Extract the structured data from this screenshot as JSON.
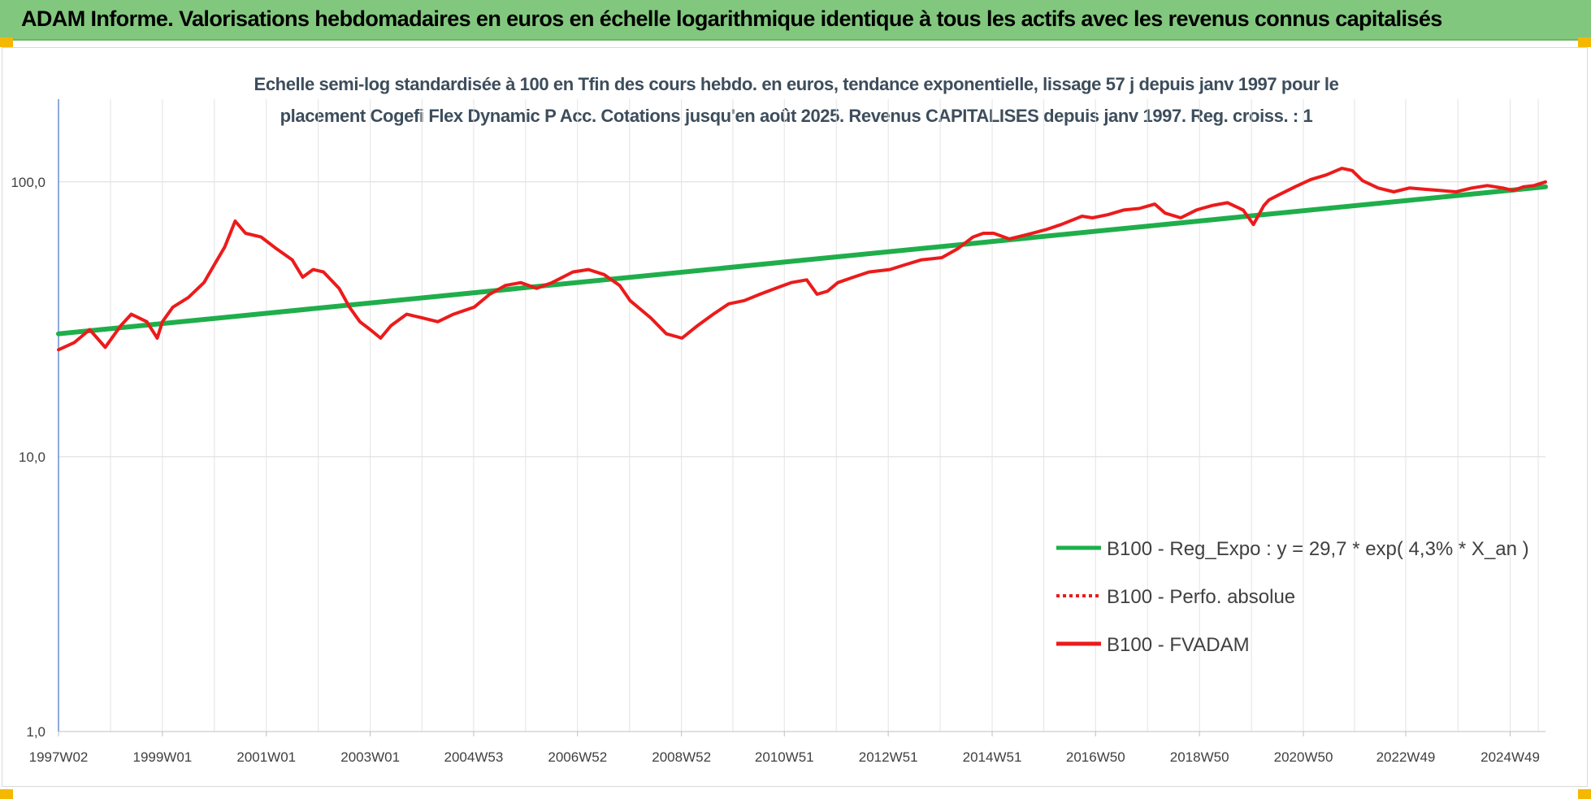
{
  "header": {
    "title": "ADAM Informe. Valorisations hebdomadaires en euros en échelle logarithmique identique à tous les actifs avec les revenus connus capitalisés"
  },
  "colors": {
    "header_bg": "#82c77e",
    "corner_accent": "#f5b800",
    "reg_line": "#1fae4b",
    "fvadam_line": "#ec1b1b"
  },
  "chart_data": {
    "type": "line",
    "title_lines": [
      "Echelle semi-log standardisée à 100 en Tfin des cours hebdo. en euros, tendance exponentielle, lissage 57 j depuis janv 1997 pour le",
      "placement Cogefi Flex Dynamic P Acc. Cotations jusqu'en août 2025. Revenus CAPITALISES depuis janv 1997. Reg. croiss. : 1"
    ],
    "y_scale": "log",
    "ylim": [
      1,
      200
    ],
    "y_ticks": [
      1,
      10,
      100
    ],
    "y_tick_labels": [
      "1,0",
      "10,0",
      "100,0"
    ],
    "xlim": [
      1997.0,
      2025.62
    ],
    "x_ticks": [
      1997.0,
      1999.0,
      2001.0,
      2003.0,
      2004.99,
      2006.99,
      2008.99,
      2010.97,
      2012.97,
      2014.97,
      2016.96,
      2018.96,
      2020.96,
      2022.93,
      2024.94
    ],
    "x_tick_labels": [
      "1997W02",
      "1999W01",
      "2001W01",
      "2003W01",
      "2004W53",
      "2006W52",
      "2008W52",
      "2010W51",
      "2012W51",
      "2014W51",
      "2016W50",
      "2018W50",
      "2020W50",
      "2022W49",
      "2024W49"
    ],
    "grid": "vertical-and-horizontal",
    "legend_position": "right",
    "series": [
      {
        "name": "B100 - Reg_Expo : y = 29,7 * exp( 4,3% *  X_an )",
        "style": "solid",
        "color": "#1fae4b",
        "x": [
          1997.0,
          2025.62
        ],
        "y": [
          28.0,
          96.0
        ]
      },
      {
        "name": "B100 - Perfo. absolue",
        "style": "dotted",
        "color": "#ec1b1b",
        "x": [],
        "y": []
      },
      {
        "name": "B100 - FVADAM",
        "style": "solid",
        "color": "#ec1b1b",
        "x": [
          1997.0,
          1997.3,
          1997.6,
          1997.9,
          1998.2,
          1998.4,
          1998.7,
          1998.9,
          1999.0,
          1999.2,
          1999.5,
          1999.8,
          2000.0,
          2000.2,
          2000.4,
          2000.6,
          2000.9,
          2001.2,
          2001.5,
          2001.7,
          2001.9,
          2002.1,
          2002.4,
          2002.6,
          2002.8,
          2003.0,
          2003.2,
          2003.4,
          2003.7,
          2004.0,
          2004.3,
          2004.6,
          2005.0,
          2005.3,
          2005.6,
          2005.9,
          2006.2,
          2006.5,
          2006.9,
          2007.2,
          2007.5,
          2007.8,
          2008.0,
          2008.4,
          2008.7,
          2009.0,
          2009.3,
          2009.6,
          2009.9,
          2010.2,
          2010.5,
          2010.8,
          2011.1,
          2011.4,
          2011.6,
          2011.8,
          2012.0,
          2012.3,
          2012.6,
          2013.0,
          2013.3,
          2013.6,
          2014.0,
          2014.3,
          2014.6,
          2014.8,
          2015.0,
          2015.3,
          2015.6,
          2016.0,
          2016.3,
          2016.7,
          2016.9,
          2017.2,
          2017.5,
          2017.8,
          2018.1,
          2018.3,
          2018.6,
          2018.9,
          2019.0,
          2019.2,
          2019.5,
          2019.8,
          2020.0,
          2020.2,
          2020.3,
          2020.5,
          2020.8,
          2021.1,
          2021.4,
          2021.7,
          2021.9,
          2022.1,
          2022.4,
          2022.7,
          2023.0,
          2023.3,
          2023.6,
          2023.9,
          2024.2,
          2024.5,
          2024.8,
          2025.0,
          2025.2,
          2025.4,
          2025.62
        ],
        "y": [
          24.5,
          26,
          29,
          25,
          30,
          33,
          31,
          27,
          31,
          35,
          38,
          43,
          50,
          58,
          72,
          65,
          63,
          57,
          52,
          45,
          48,
          47,
          41,
          35,
          31,
          29,
          27,
          30,
          33,
          32,
          31,
          33,
          35,
          39,
          42,
          43,
          41,
          43,
          47,
          48,
          46,
          42,
          37,
          32,
          28,
          27,
          30,
          33,
          36,
          37,
          39,
          41,
          43,
          44,
          39,
          40,
          43,
          45,
          47,
          48,
          50,
          52,
          53,
          57,
          63,
          65,
          65,
          62,
          64,
          67,
          70,
          75,
          74,
          76,
          79,
          80,
          83,
          77,
          74,
          79,
          80,
          82,
          84,
          79,
          70,
          82,
          86,
          90,
          96,
          102,
          106,
          112,
          110,
          101,
          95,
          92,
          95,
          94,
          93,
          92,
          95,
          97,
          95,
          93,
          96,
          97,
          100
        ]
      }
    ]
  }
}
